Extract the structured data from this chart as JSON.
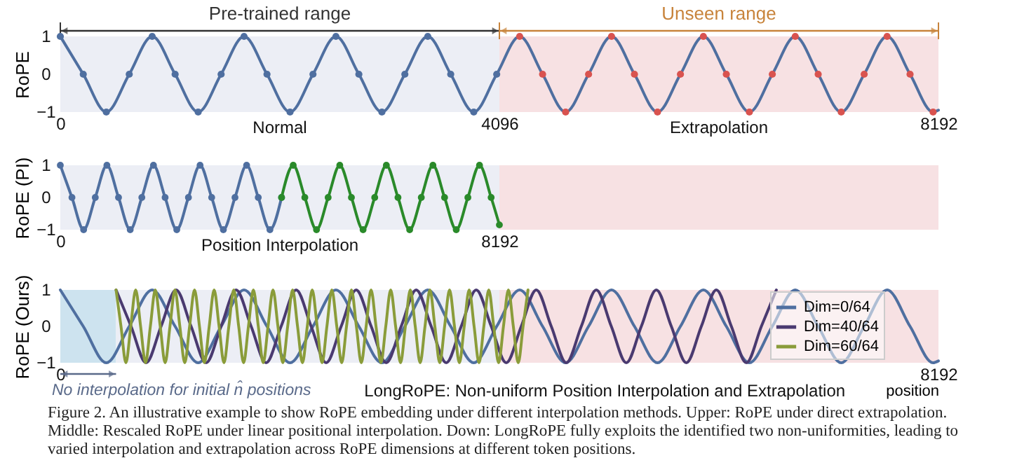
{
  "chart_data": [
    {
      "type": "line",
      "ylabel": "RoPE",
      "xlim": [
        0,
        8192
      ],
      "xticks": [
        0,
        4096,
        8192
      ],
      "ylim": [
        -1,
        1
      ],
      "yticks": [
        -1,
        0,
        1
      ],
      "bands": [
        {
          "axis": "x",
          "from": 0,
          "to": 4096,
          "label": "Pre-trained range",
          "color": "#eceef5"
        },
        {
          "axis": "x",
          "from": 4096,
          "to": 8192,
          "label": "Unseen range",
          "color": "#f7e1e3"
        }
      ],
      "annotations": [
        "Normal",
        "Extrapolation"
      ],
      "series": [
        {
          "color": "#4f6fa0",
          "x": [
            0,
            214,
            429,
            643,
            857,
            1071,
            1286,
            1500,
            1714,
            1928,
            2143,
            2357,
            2571,
            2785,
            3000,
            3214,
            3428,
            3642,
            3857,
            4071,
            4285,
            4499,
            4714,
            4928,
            5142,
            5356,
            5571,
            5785,
            5999,
            6213,
            6428,
            6642,
            6856,
            7070,
            7285,
            7499,
            7713,
            7927,
            8142,
            8192
          ],
          "values": [
            1,
            0,
            -1,
            0,
            1,
            0,
            -1,
            0,
            1,
            0,
            -1,
            0,
            1,
            0,
            -1,
            0,
            1,
            0,
            -1,
            0,
            1,
            0,
            -1,
            0,
            1,
            0,
            -1,
            0,
            1,
            0,
            -1,
            0,
            1,
            0,
            -1,
            0,
            1,
            0,
            -1,
            -0.95
          ]
        },
        {
          "type": "scatter",
          "color": "#4f6fa0",
          "x": [
            0,
            214,
            429,
            643,
            857,
            1071,
            1286,
            1500,
            1714,
            1928,
            2143,
            2357,
            2571,
            2785,
            3000,
            3214,
            3428,
            3642,
            3857,
            4071
          ],
          "values": [
            1,
            0,
            -1,
            0,
            1,
            0,
            -1,
            0,
            1,
            0,
            -1,
            0,
            1,
            0,
            -1,
            0,
            1,
            0,
            -1,
            0
          ]
        },
        {
          "type": "scatter",
          "color": "#d9534f",
          "x": [
            4285,
            4499,
            4714,
            4928,
            5142,
            5356,
            5571,
            5785,
            5999,
            6213,
            6428,
            6642,
            6856,
            7070,
            7285,
            7499,
            7713,
            7927,
            8142
          ],
          "values": [
            1,
            0,
            -1,
            0,
            1,
            0,
            -1,
            0,
            1,
            0,
            -1,
            0,
            1,
            0,
            -1,
            0,
            1,
            0,
            -1
          ]
        }
      ]
    },
    {
      "type": "line",
      "ylabel": "RoPE (PI)",
      "xlim": [
        0,
        16384
      ],
      "xticks": [
        0,
        8192
      ],
      "ylim": [
        -1,
        1
      ],
      "yticks": [
        -1,
        0,
        1
      ],
      "marker": "circle",
      "bands": [
        {
          "axis": "x",
          "from": 0,
          "to": 8192,
          "color": "#eceef5"
        },
        {
          "axis": "x",
          "from": 8192,
          "to": 16384,
          "color": "#f7e1e3"
        }
      ],
      "annotations": [
        "Position Interpolation"
      ],
      "series": [
        {
          "color": "#4f6fa0",
          "x": [
            0,
            217,
            435,
            652,
            869,
            1086,
            1304,
            1521,
            1738,
            1955,
            2173,
            2390,
            2607,
            2824,
            3042,
            3259,
            3476,
            3693,
            3911,
            4128
          ],
          "values": [
            1,
            0,
            -1,
            0,
            1,
            0,
            -1,
            0,
            1,
            0,
            -1,
            0,
            1,
            0,
            -1,
            0,
            1,
            0,
            -1,
            0
          ]
        },
        {
          "color": "#2a8a2a",
          "x": [
            4128,
            4345,
            4562,
            4780,
            4997,
            5214,
            5431,
            5649,
            5866,
            6083,
            6300,
            6518,
            6735,
            6952,
            7169,
            7387,
            7604,
            7821,
            8038,
            8192
          ],
          "values": [
            0,
            1,
            0,
            -1,
            0,
            1,
            0,
            -1,
            0,
            1,
            0,
            -1,
            0,
            1,
            0,
            -1,
            0,
            1,
            0,
            -0.85
          ]
        }
      ]
    },
    {
      "type": "line",
      "ylabel": "RoPE (Ours)",
      "xlabel": "position",
      "xlim": [
        0,
        8192
      ],
      "xticks": [
        0,
        8192
      ],
      "ylim": [
        -1,
        1
      ],
      "yticks": [
        -1,
        0,
        1
      ],
      "legend": "top right",
      "bands": [
        {
          "axis": "x",
          "from": 0,
          "to": 520,
          "label": "No interpolation for initial n̂ positions",
          "color": "#cde3ef"
        },
        {
          "axis": "x",
          "from": 520,
          "to": 4096,
          "color": "#eceef5"
        },
        {
          "axis": "x",
          "from": 4096,
          "to": 8192,
          "color": "#f7e1e3"
        }
      ],
      "annotations": [
        "LongRoPE: Non-uniform Position Interpolation and Extrapolation",
        "Figure 2. An illustrative example to show RoPE embedding under different interpolation methods. Upper: RoPE under direct extrapolation. Middle: Rescaled RoPE under linear positional interpolation. Down: LongRoPE fully exploits the identified two non-uniformities, leading to varied interpolation and extrapolation across RoPE dimensions at different token positions."
      ],
      "series": [
        {
          "name": "Dim=0/64",
          "color": "#4f6fa0",
          "x": [
            0,
            214,
            429,
            643,
            857,
            1071,
            1286,
            1500,
            1714,
            1928,
            2143,
            2357,
            2571,
            2785,
            3000,
            3214,
            3428,
            3642,
            3857,
            4071,
            4285,
            4499,
            4714,
            4928,
            5142,
            5356,
            5571,
            5785,
            5999,
            6213,
            6428,
            6642,
            6856,
            7070,
            7285,
            7499,
            7713,
            7927,
            8142,
            8192
          ],
          "values": [
            1,
            0,
            -1,
            0,
            1,
            0,
            -1,
            0,
            1,
            0,
            -1,
            0,
            1,
            0,
            -1,
            0,
            1,
            0,
            -1,
            0,
            1,
            0,
            -1,
            0,
            1,
            0,
            -1,
            0,
            1,
            0,
            -1,
            0,
            1,
            0,
            -1,
            0,
            1,
            0,
            -1,
            -0.95
          ]
        },
        {
          "name": "Dim=40/64",
          "color": "#4a3a70",
          "x": [
            520,
            660,
            800,
            940,
            1080,
            1220,
            1360,
            1500,
            1640,
            1780,
            1920,
            2060,
            2200,
            2340,
            2480,
            2620,
            2760,
            2900,
            3040,
            3180,
            3320,
            3460,
            3600,
            3740,
            3880,
            4020,
            4160,
            4300,
            4440,
            4580,
            4720,
            4860,
            5000,
            5140,
            5280,
            5420,
            5560,
            5700,
            5840,
            5980,
            6120,
            6260,
            6400,
            6540,
            6680
          ],
          "values": [
            1,
            0,
            -1,
            0,
            1,
            0,
            -1,
            0,
            1,
            0,
            -1,
            0,
            1,
            0,
            -1,
            0,
            1,
            0,
            -1,
            0,
            1,
            0,
            -1,
            0,
            1,
            0,
            -1,
            0,
            1,
            0,
            -1,
            0,
            1,
            0,
            -1,
            0,
            1,
            0,
            -1,
            0,
            1,
            0,
            -1,
            0,
            1
          ]
        },
        {
          "name": "Dim=60/64",
          "color": "#8a9c3a",
          "x": [
            520,
            566,
            612,
            657,
            703,
            749,
            795,
            840,
            886,
            932,
            978,
            1023,
            1069,
            1115,
            1161,
            1206,
            1252,
            1298,
            1344,
            1389,
            1435,
            1481,
            1527,
            1572,
            1618,
            1664,
            1710,
            1755,
            1801,
            1847,
            1893,
            1938,
            1984,
            2030,
            2076,
            2121,
            2167,
            2213,
            2259,
            2304,
            2350,
            2396,
            2442,
            2487,
            2533,
            2579,
            2625,
            2670,
            2716,
            2762,
            2808,
            2853,
            2899,
            2945,
            2991,
            3036,
            3082,
            3128,
            3174,
            3219,
            3265,
            3311,
            3357,
            3402,
            3448,
            3494,
            3540,
            3585,
            3631,
            3677,
            3723,
            3768,
            3814,
            3860,
            3906,
            3951,
            3997,
            4043,
            4089,
            4134,
            4180,
            4226,
            4272,
            4317,
            4363
          ],
          "values": [
            1,
            0,
            -1,
            0,
            1,
            0,
            -1,
            0,
            1,
            0,
            -1,
            0,
            1,
            0,
            -1,
            0,
            1,
            0,
            -1,
            0,
            1,
            0,
            -1,
            0,
            1,
            0,
            -1,
            0,
            1,
            0,
            -1,
            0,
            1,
            0,
            -1,
            0,
            1,
            0,
            -1,
            0,
            1,
            0,
            -1,
            0,
            1,
            0,
            -1,
            0,
            1,
            0,
            -1,
            0,
            1,
            0,
            -1,
            0,
            1,
            0,
            -1,
            0,
            1,
            0,
            -1,
            0,
            1,
            0,
            -1,
            0,
            1,
            0,
            -1,
            0,
            1,
            0,
            -1,
            0,
            1,
            0,
            -1,
            0,
            1,
            0,
            -1,
            0,
            1
          ]
        }
      ]
    }
  ]
}
